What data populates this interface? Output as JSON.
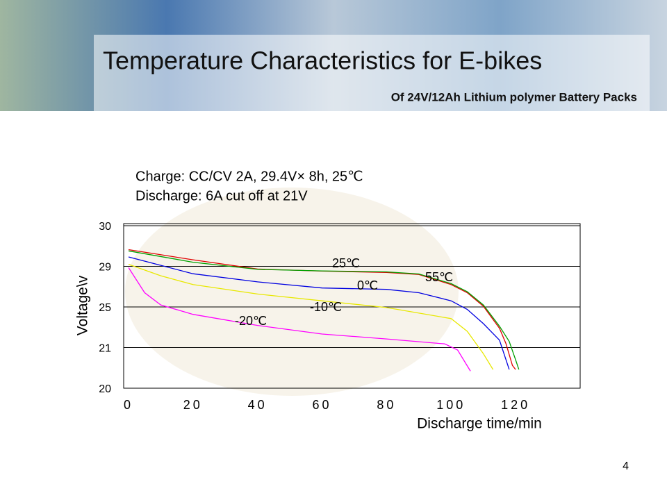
{
  "chart_data": {
    "type": "line",
    "title": "Temperature Characteristics for E-bikes",
    "subtitle": "Of 24V/12Ah Lithium polymer Battery Packs",
    "annotations": [
      "Charge: CC/CV  2A, 29.4V× 8h, 25℃",
      "Discharge: 6A  cut off  at  21V"
    ],
    "x_label": "Discharge time/min",
    "y_label": "Voltage\\v",
    "xlim": [
      -1.5,
      140
    ],
    "xticks": [
      0,
      20,
      40,
      60,
      80,
      100,
      120
    ],
    "ylim": [
      20,
      30
    ],
    "yticks": [
      30,
      29,
      25,
      21,
      20
    ],
    "grid": true,
    "series": [
      {
        "name": "25℃",
        "color": "#e00000",
        "x": [
          0,
          20,
          40,
          60,
          80,
          90,
          100,
          105,
          110,
          115,
          117,
          119,
          120
        ],
        "values": [
          29.41,
          29.16,
          28.73,
          28.53,
          28.4,
          28.2,
          27.2,
          26.4,
          25.07,
          22.9,
          21.4,
          20.56,
          20.46
        ]
      },
      {
        "name": "55℃",
        "color": "#00a000",
        "x": [
          0,
          20,
          40,
          60,
          80,
          90,
          100,
          105,
          110,
          115,
          118,
          120,
          121
        ],
        "values": [
          29.38,
          29.1,
          28.7,
          28.55,
          28.45,
          28.25,
          27.3,
          26.5,
          25.2,
          23.1,
          21.6,
          20.7,
          20.46
        ]
      },
      {
        "name": "0℃",
        "color": "#0000e0",
        "x": [
          0,
          20,
          40,
          60,
          80,
          90,
          100,
          105,
          110,
          115,
          118
        ],
        "values": [
          29.23,
          28.27,
          27.47,
          26.87,
          26.73,
          26.4,
          25.6,
          24.76,
          23.36,
          21.73,
          20.46
        ]
      },
      {
        "name": "-10℃",
        "color": "#e8e800",
        "x": [
          0,
          10,
          20,
          40,
          60,
          80,
          100,
          105,
          110,
          113
        ],
        "values": [
          29.05,
          28.07,
          27.2,
          26.27,
          25.6,
          24.94,
          23.85,
          22.6,
          20.85,
          20.46
        ]
      },
      {
        "name": "-20℃",
        "color": "#ff00ff",
        "x": [
          0,
          5,
          10,
          20,
          40,
          60,
          80,
          98,
          102,
          106
        ],
        "values": [
          28.87,
          26.4,
          25.2,
          24.27,
          23.18,
          22.33,
          21.85,
          21.36,
          20.94,
          20.42
        ]
      }
    ],
    "page_number": "4"
  }
}
